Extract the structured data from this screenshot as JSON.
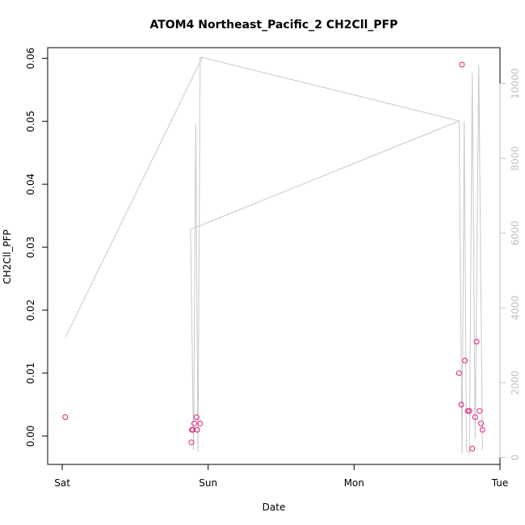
{
  "chart_data": {
    "type": "scatter",
    "title": "ATOM4 Northeast_Pacific_2 CH2Cll_PFP",
    "xlabel": "Date",
    "ylabel": "CH2Cll_PFP",
    "x_ticks": [
      {
        "label": "Sat",
        "day": 0
      },
      {
        "label": "Sun",
        "day": 1
      },
      {
        "label": "Mon",
        "day": 2
      },
      {
        "label": "Tue",
        "day": 3
      }
    ],
    "xlim_days": [
      -0.1,
      3.0
    ],
    "ylim": [
      -0.0045,
      0.0617
    ],
    "y_ticks": [
      0.0,
      0.01,
      0.02,
      0.03,
      0.04,
      0.05,
      0.06
    ],
    "y2_ticks": [
      0,
      2000,
      4000,
      6000,
      8000,
      10000
    ],
    "y2lim": [
      -184,
      10961
    ],
    "colors": {
      "points": "#e8197a",
      "altitude_line": "#c8c8c8",
      "right_axis": "#c0c0c0",
      "axes": "#000000"
    },
    "series": [
      {
        "values": [
          [
            0.02,
            0.003
          ],
          [
            0.885,
            -0.001
          ],
          [
            0.89,
            0.001
          ],
          [
            0.895,
            0.001
          ],
          [
            0.905,
            0.002
          ],
          [
            0.92,
            0.003
          ],
          [
            0.925,
            0.001
          ],
          [
            0.945,
            0.002
          ],
          [
            2.72,
            0.01
          ],
          [
            2.735,
            0.005
          ],
          [
            2.74,
            0.059
          ],
          [
            2.76,
            0.012
          ],
          [
            2.78,
            0.004
          ],
          [
            2.79,
            0.004
          ],
          [
            2.81,
            -0.002
          ],
          [
            2.83,
            0.003
          ],
          [
            2.84,
            0.015
          ],
          [
            2.86,
            0.004
          ],
          [
            2.87,
            0.002
          ],
          [
            2.88,
            0.001
          ]
        ]
      },
      {
        "axis": "right",
        "values": [
          [
            0.02,
            3200
          ],
          [
            0.96,
            10700
          ],
          [
            2.72,
            9000
          ],
          [
            0.88,
            6100
          ],
          [
            0.9,
            200
          ],
          [
            0.915,
            8900
          ],
          [
            0.93,
            150
          ],
          [
            0.945,
            10700
          ],
          [
            0.96,
            10700
          ],
          [
            2.72,
            9000
          ],
          [
            2.74,
            100
          ],
          [
            2.755,
            9000
          ],
          [
            2.77,
            200
          ],
          [
            2.79,
            120
          ],
          [
            2.81,
            10300
          ],
          [
            2.83,
            500
          ],
          [
            2.855,
            10500
          ],
          [
            2.88,
            200
          ]
        ]
      }
    ]
  }
}
